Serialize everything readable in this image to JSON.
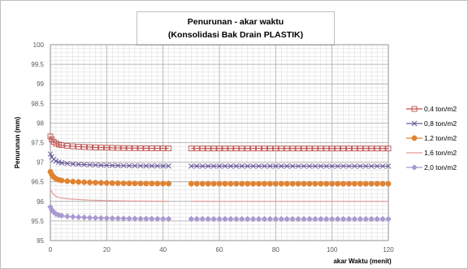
{
  "chart_data": {
    "type": "line",
    "title": "Penurunan - akar waktu",
    "subtitle": "(Konsolidasi  Bak Drain PLASTIK)",
    "xlabel": "akar Waktu (menit)",
    "ylabel": "Penurunan (mm)",
    "xlim": [
      0,
      120
    ],
    "ylim": [
      95,
      100
    ],
    "x_ticks": [
      "0",
      "20",
      "40",
      "60",
      "80",
      "100",
      "120"
    ],
    "y_ticks": [
      "100",
      "99.5",
      "99",
      "98.5",
      "98",
      "97.5",
      "97",
      "96.5",
      "96",
      "95.5",
      "95"
    ],
    "grid": true,
    "legend_position": "right",
    "series": [
      {
        "name": "0,4 ton/m2",
        "color": "#c0504d",
        "marker": "square-open",
        "start": 97.55,
        "plateau": 97.35
      },
      {
        "name": "0,8 ton/m2",
        "color": "#6b5b9a",
        "marker": "x",
        "start": 97.1,
        "plateau": 96.9
      },
      {
        "name": "1,2 ton/m2",
        "color": "#e0822f",
        "marker": "circle",
        "start": 96.65,
        "plateau": 96.45
      },
      {
        "name": "1,6 ton/m2",
        "color": "#e49b99",
        "marker": "none",
        "start": 96.2,
        "plateau": 96.0
      },
      {
        "name": "2,0 ton/m2",
        "color": "#a89ad0",
        "marker": "diamond",
        "start": 95.75,
        "plateau": 95.55
      }
    ]
  }
}
